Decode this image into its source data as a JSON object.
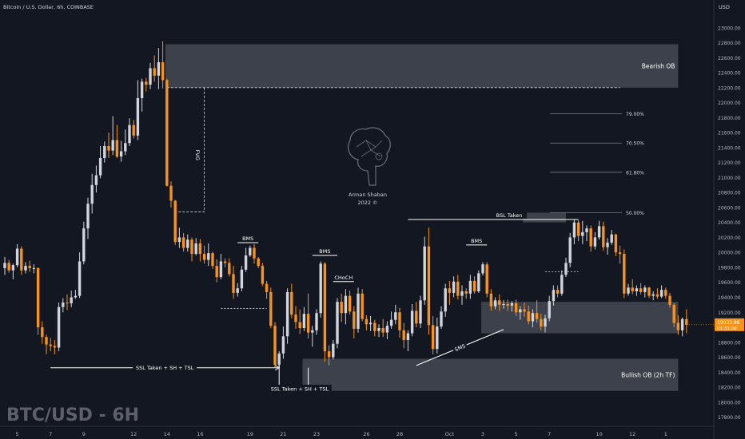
{
  "header": {
    "symbol_title": "Bitcoin / U.S. Dollar, 6h, COINBASE",
    "currency": "USD"
  },
  "watermark": {
    "symbol": "BTC/USD - 6H",
    "author": "Arman Shaban",
    "year": "2022 ©"
  },
  "price_tag": {
    "price": "19033.86",
    "countdown": "01:31:08"
  },
  "colors": {
    "background": "#131722",
    "up_candle": "#d1d4dc",
    "down_candle": "#f7931a",
    "zone": "#787b86",
    "text": "#d1d4dc",
    "axis_text": "#b2b5be"
  },
  "chart_data": {
    "type": "candlestick",
    "title": "Bitcoin / U.S. Dollar, 6h, COINBASE",
    "ylim": [
      17700,
      23200
    ],
    "y_ticks": [
      17800,
      18000,
      18200,
      18400,
      18600,
      18800,
      19000,
      19200,
      19400,
      19600,
      19800,
      20000,
      20200,
      20400,
      20600,
      20800,
      21000,
      21200,
      21400,
      21600,
      21800,
      22000,
      22200,
      22400,
      22600,
      22800,
      23000
    ],
    "y_tick_labels": [
      "17800.00",
      "18000.00",
      "18200.00",
      "18400.00",
      "18600.00",
      "18800.00",
      "19000.00",
      "19200.00",
      "19400.00",
      "19600.00",
      "19800.00",
      "20000.00",
      "20200.00",
      "20400.00",
      "20600.00",
      "20800.00",
      "21000.00",
      "21200.00",
      "21400.00",
      "21600.00",
      "21800.00",
      "22000.00",
      "22200.00",
      "22400.00",
      "22600.00",
      "22800.00",
      "23000.00"
    ],
    "x_labels": [
      {
        "label": "5",
        "bar": 3
      },
      {
        "label": "7",
        "bar": 11
      },
      {
        "label": "9",
        "bar": 19
      },
      {
        "label": "12",
        "bar": 31
      },
      {
        "label": "14",
        "bar": 39
      },
      {
        "label": "16",
        "bar": 47
      },
      {
        "label": "19",
        "bar": 59
      },
      {
        "label": "21",
        "bar": 67
      },
      {
        "label": "23",
        "bar": 75
      },
      {
        "label": "26",
        "bar": 87
      },
      {
        "label": "28",
        "bar": 95
      },
      {
        "label": "Oct",
        "bar": 107
      },
      {
        "label": "3",
        "bar": 115
      },
      {
        "label": "5",
        "bar": 123
      },
      {
        "label": "7",
        "bar": 131
      },
      {
        "label": "10",
        "bar": 143
      },
      {
        "label": "12",
        "bar": 151
      },
      {
        "label": "1",
        "bar": 159
      }
    ],
    "candles": [
      [
        19790,
        19940,
        19700,
        19860
      ],
      [
        19860,
        19900,
        19730,
        19760
      ],
      [
        19760,
        19850,
        19640,
        19830
      ],
      [
        19830,
        20110,
        19800,
        20050
      ],
      [
        20050,
        20080,
        19700,
        19760
      ],
      [
        19760,
        19870,
        19720,
        19820
      ],
      [
        19820,
        19890,
        19740,
        19790
      ],
      [
        19790,
        19840,
        19720,
        19790
      ],
      [
        19790,
        19800,
        18900,
        19000
      ],
      [
        19000,
        19080,
        18780,
        18870
      ],
      [
        18870,
        18900,
        18640,
        18770
      ],
      [
        18770,
        18860,
        18680,
        18750
      ],
      [
        18750,
        18830,
        18640,
        18730
      ],
      [
        18730,
        19330,
        18680,
        19270
      ],
      [
        19270,
        19390,
        19200,
        19330
      ],
      [
        19330,
        19440,
        19230,
        19320
      ],
      [
        19320,
        19490,
        19270,
        19400
      ],
      [
        19400,
        19500,
        19380,
        19420
      ],
      [
        19420,
        20000,
        19390,
        19880
      ],
      [
        19880,
        20410,
        19840,
        20320
      ],
      [
        20320,
        20730,
        20180,
        20650
      ],
      [
        20650,
        21050,
        20520,
        20900
      ],
      [
        20900,
        21160,
        20800,
        21030
      ],
      [
        21030,
        21420,
        20990,
        21260
      ],
      [
        21260,
        21480,
        21200,
        21420
      ],
      [
        21420,
        21600,
        21260,
        21360
      ],
      [
        21360,
        21820,
        21300,
        21500
      ],
      [
        21500,
        21700,
        21260,
        21280
      ],
      [
        21280,
        21490,
        21210,
        21350
      ],
      [
        21350,
        21640,
        21300,
        21460
      ],
      [
        21460,
        21790,
        21420,
        21700
      ],
      [
        21700,
        21770,
        21520,
        21560
      ],
      [
        21560,
        22300,
        21500,
        22060
      ],
      [
        22060,
        22320,
        21880,
        22280
      ],
      [
        22280,
        22330,
        22150,
        22240
      ],
      [
        22240,
        22530,
        22180,
        22460
      ],
      [
        22460,
        22630,
        22280,
        22360
      ],
      [
        22360,
        22730,
        22180,
        22540
      ],
      [
        22540,
        22820,
        22190,
        22300
      ],
      [
        22300,
        22320,
        20880,
        20890
      ],
      [
        20890,
        20950,
        20600,
        20690
      ],
      [
        20690,
        20700,
        20100,
        20140
      ],
      [
        20140,
        20330,
        20060,
        20200
      ],
      [
        20200,
        20260,
        20010,
        20060
      ],
      [
        20060,
        20240,
        20010,
        20170
      ],
      [
        20170,
        20200,
        19880,
        19980
      ],
      [
        19980,
        20190,
        19960,
        20120
      ],
      [
        20120,
        20180,
        19880,
        19980
      ],
      [
        19980,
        20090,
        19850,
        19900
      ],
      [
        19900,
        20120,
        19820,
        19990
      ],
      [
        19990,
        20010,
        19780,
        19820
      ],
      [
        19820,
        19910,
        19600,
        19670
      ],
      [
        19670,
        19980,
        19640,
        19880
      ],
      [
        19880,
        19920,
        19800,
        19860
      ],
      [
        19860,
        19920,
        19680,
        19710
      ],
      [
        19710,
        19820,
        19380,
        19460
      ],
      [
        19460,
        19590,
        19410,
        19520
      ],
      [
        19520,
        19820,
        19480,
        19770
      ],
      [
        19770,
        20060,
        19740,
        19960
      ],
      [
        19960,
        20090,
        19940,
        20060
      ],
      [
        20060,
        20110,
        19850,
        19920
      ],
      [
        19920,
        19940,
        19790,
        19820
      ],
      [
        19820,
        19860,
        19550,
        19580
      ],
      [
        19580,
        19620,
        19380,
        19470
      ],
      [
        19470,
        19530,
        18990,
        19020
      ],
      [
        19020,
        19070,
        18460,
        18500
      ],
      [
        18500,
        18680,
        18450,
        18650
      ],
      [
        18650,
        19010,
        18580,
        18880
      ],
      [
        18880,
        19520,
        18780,
        19470
      ],
      [
        19470,
        19580,
        19120,
        19170
      ],
      [
        19170,
        19280,
        18980,
        19070
      ],
      [
        19070,
        19240,
        18910,
        18990
      ],
      [
        18990,
        19270,
        18950,
        19180
      ],
      [
        19180,
        19450,
        18850,
        18930
      ],
      [
        18930,
        19020,
        18740,
        18960
      ],
      [
        18960,
        19240,
        18900,
        19190
      ],
      [
        19190,
        19880,
        19130,
        19850
      ],
      [
        19850,
        19870,
        18540,
        18680
      ],
      [
        18680,
        18760,
        18490,
        18600
      ],
      [
        18600,
        18830,
        18570,
        18780
      ],
      [
        18780,
        19390,
        18720,
        19340
      ],
      [
        19340,
        19450,
        19070,
        19190
      ],
      [
        19190,
        19510,
        19040,
        19420
      ],
      [
        19420,
        19490,
        19170,
        19210
      ],
      [
        19210,
        19280,
        18850,
        18980
      ],
      [
        18980,
        19530,
        18930,
        19450
      ],
      [
        19450,
        19510,
        19080,
        19110
      ],
      [
        19110,
        19160,
        18960,
        19040
      ],
      [
        19040,
        19150,
        18950,
        19060
      ],
      [
        19060,
        19100,
        18880,
        18950
      ],
      [
        18950,
        19040,
        18870,
        18990
      ],
      [
        18990,
        19110,
        18870,
        18930
      ],
      [
        18930,
        19080,
        18840,
        19020
      ],
      [
        19020,
        19210,
        18980,
        19100
      ],
      [
        19100,
        19300,
        19040,
        19200
      ],
      [
        19200,
        19260,
        18860,
        18960
      ],
      [
        18960,
        19060,
        18720,
        18830
      ],
      [
        18830,
        18960,
        18680,
        18920
      ],
      [
        18920,
        19310,
        18880,
        19220
      ],
      [
        19220,
        19340,
        19000,
        19050
      ],
      [
        19050,
        19420,
        18990,
        19360
      ],
      [
        19360,
        20210,
        19300,
        20080
      ],
      [
        20080,
        20330,
        18900,
        19030
      ],
      [
        19030,
        19150,
        18640,
        18710
      ],
      [
        18710,
        19130,
        18650,
        19010
      ],
      [
        19010,
        19280,
        18980,
        19210
      ],
      [
        19210,
        19580,
        19140,
        19520
      ],
      [
        19520,
        19620,
        19300,
        19460
      ],
      [
        19460,
        19680,
        19400,
        19610
      ],
      [
        19610,
        19700,
        19370,
        19420
      ],
      [
        19420,
        19560,
        19300,
        19480
      ],
      [
        19480,
        19520,
        19380,
        19450
      ],
      [
        19450,
        19700,
        19380,
        19620
      ],
      [
        19620,
        19680,
        19450,
        19480
      ],
      [
        19480,
        19760,
        19460,
        19720
      ],
      [
        19720,
        19870,
        19690,
        19840
      ],
      [
        19840,
        19870,
        19400,
        19450
      ],
      [
        19450,
        19510,
        19220,
        19280
      ],
      [
        19280,
        19400,
        19240,
        19360
      ],
      [
        19360,
        19440,
        19220,
        19300
      ],
      [
        19300,
        19360,
        19250,
        19310
      ],
      [
        19310,
        19370,
        19220,
        19290
      ],
      [
        19290,
        19350,
        19210,
        19320
      ],
      [
        19320,
        19370,
        19150,
        19200
      ],
      [
        19200,
        19280,
        19100,
        19240
      ],
      [
        19240,
        19330,
        19140,
        19210
      ],
      [
        19210,
        19290,
        19040,
        19080
      ],
      [
        19080,
        19240,
        19000,
        19190
      ],
      [
        19190,
        19360,
        19060,
        19110
      ],
      [
        19110,
        19180,
        18960,
        19010
      ],
      [
        19010,
        19170,
        18930,
        19120
      ],
      [
        19120,
        19420,
        19080,
        19350
      ],
      [
        19350,
        19560,
        19290,
        19500
      ],
      [
        19500,
        19560,
        19400,
        19450
      ],
      [
        19450,
        19760,
        19420,
        19700
      ],
      [
        19700,
        19930,
        19670,
        19860
      ],
      [
        19860,
        20260,
        19800,
        20200
      ],
      [
        20200,
        20440,
        20110,
        20400
      ],
      [
        20400,
        20430,
        20150,
        20220
      ],
      [
        20220,
        20420,
        20110,
        20270
      ],
      [
        20270,
        20360,
        20150,
        20320
      ],
      [
        20320,
        20360,
        20010,
        20080
      ],
      [
        20080,
        20270,
        20040,
        20200
      ],
      [
        20200,
        20420,
        20170,
        20350
      ],
      [
        20350,
        20410,
        20020,
        20070
      ],
      [
        20070,
        20190,
        19970,
        20130
      ],
      [
        20130,
        20300,
        20100,
        20240
      ],
      [
        20240,
        20250,
        19950,
        20000
      ],
      [
        20000,
        20090,
        19850,
        19980
      ],
      [
        19980,
        20040,
        19390,
        19450
      ],
      [
        19450,
        19580,
        19420,
        19530
      ],
      [
        19530,
        19640,
        19440,
        19480
      ],
      [
        19480,
        19560,
        19420,
        19520
      ],
      [
        19520,
        19590,
        19440,
        19470
      ],
      [
        19470,
        19560,
        19400,
        19530
      ],
      [
        19530,
        19540,
        19390,
        19420
      ],
      [
        19420,
        19480,
        19360,
        19440
      ],
      [
        19440,
        19520,
        19380,
        19410
      ],
      [
        19410,
        19560,
        19390,
        19500
      ],
      [
        19500,
        19530,
        19380,
        19420
      ],
      [
        19420,
        19460,
        19260,
        19300
      ],
      [
        19300,
        19320,
        19000,
        19060
      ],
      [
        19060,
        19160,
        18900,
        18960
      ],
      [
        18960,
        19130,
        18880,
        19110
      ],
      [
        19110,
        19240,
        18920,
        19034
      ]
    ],
    "zones": [
      {
        "label": "Bearish OB",
        "x0": 39,
        "x1": 162,
        "low": 22200,
        "high": 22780
      },
      {
        "label": "Bullish OB (2h TF)",
        "x0": 72,
        "x1": 162,
        "low": 18150,
        "high": 18580
      },
      {
        "label": "",
        "x0": 115,
        "x1": 162,
        "low": 18920,
        "high": 19340
      },
      {
        "label": "",
        "x0": 125,
        "x1": 135,
        "low": 20400,
        "high": 20530
      }
    ],
    "fib_levels": [
      {
        "label": "79.00%",
        "price": 21850
      },
      {
        "label": "70.50%",
        "price": 21460
      },
      {
        "label": "61.80%",
        "price": 21070
      },
      {
        "label": "50.00%",
        "price": 20530
      }
    ],
    "annotations": [
      {
        "text": "FVG",
        "kind": "rotated",
        "x": 46,
        "price": 21300
      },
      {
        "text": "BMS",
        "kind": "level",
        "x0": 56,
        "x1": 61,
        "price": 20130
      },
      {
        "text": "BMS",
        "kind": "level",
        "x0": 74,
        "x1": 80,
        "price": 19960
      },
      {
        "text": "CHoCH",
        "kind": "level",
        "x0": 79,
        "x1": 84,
        "price": 19610
      },
      {
        "text": "BMS",
        "kind": "level",
        "x0": 111,
        "x1": 116,
        "price": 20100
      },
      {
        "text": "BSL Taken",
        "kind": "level",
        "x0": 97,
        "x1": 138,
        "price": 20440
      },
      {
        "text": "SSL Taken + SH + TSL",
        "kind": "arrow",
        "x0": 11,
        "x1": 66,
        "price": 18460
      },
      {
        "text": "SSL Taken + SH + TSL",
        "kind": "label",
        "x0": 72,
        "x1": 73,
        "price": 18180
      },
      {
        "text": "SMS",
        "kind": "diag",
        "x0": 99,
        "x1": 120,
        "p0": 18490,
        "p1": 18970
      }
    ]
  }
}
